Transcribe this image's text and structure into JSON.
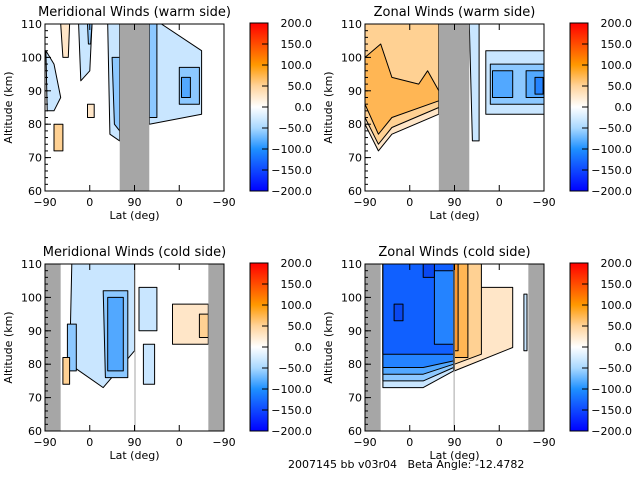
{
  "footer": {
    "date_code": "2007145 bb v03r04",
    "beta_label": "Beta Angle:",
    "beta_value": "-12.4782"
  },
  "colorbar": {
    "ticks": [
      "200.0",
      "150.0",
      "100.0",
      "50.0",
      "0.0",
      "-50.0",
      "-100.0",
      "-150.0",
      "-200.0"
    ],
    "range": [
      -200,
      200
    ],
    "stops": [
      {
        "v": 200,
        "c": "#ff0000"
      },
      {
        "v": 100,
        "c": "#ff9900"
      },
      {
        "v": 50,
        "c": "#ffd39a"
      },
      {
        "v": 0,
        "c": "#ffffff"
      },
      {
        "v": -50,
        "c": "#a8d8ff"
      },
      {
        "v": -100,
        "c": "#1e90ff"
      },
      {
        "v": -200,
        "c": "#0000ff"
      }
    ]
  },
  "colors": {
    "gap": "#a6a6a6",
    "pos1": "#ffe6c8",
    "pos2": "#ffd193",
    "pos3": "#ffb654",
    "pos4": "#ff9a2e",
    "neg1": "#c9e6ff",
    "neg2": "#8cc8ff",
    "neg3": "#52a8ff",
    "neg4": "#2483ff",
    "neg5": "#1060ff",
    "neg6": "#0a48f0"
  },
  "chart_data": [
    {
      "type": "heatmap",
      "title": "Meridional Winds (warm side)",
      "xlabel": "Lat (deg)",
      "ylabel": "Altitude (km)",
      "xticks": [
        "-90",
        "0",
        "90",
        "0",
        "-90"
      ],
      "yticks": [
        "60",
        "70",
        "80",
        "90",
        "100",
        "110"
      ],
      "ylim": [
        60,
        110
      ],
      "x_range": [
        0,
        4
      ],
      "gaps": [
        [
          1.67,
          2.33
        ]
      ],
      "contour_interval": 25,
      "regions": [
        {
          "level": "pos1",
          "value": 20,
          "x": [
            0.35,
            0.55,
            0.52,
            0.4
          ],
          "alt": [
            110,
            110,
            100,
            100
          ]
        },
        {
          "level": "neg1",
          "value": -20,
          "x": [
            0.75,
            1.05,
            1.0,
            0.8
          ],
          "alt": [
            110,
            110,
            96,
            93
          ]
        },
        {
          "level": "neg2",
          "value": -45,
          "x": [
            0.95,
            1.05,
            1.02,
            0.97
          ],
          "alt": [
            110,
            110,
            104,
            104
          ]
        },
        {
          "level": "neg1",
          "value": -20,
          "x": [
            0.02,
            0.2,
            0.35,
            0.2,
            0.05
          ],
          "alt": [
            102,
            98,
            88,
            84,
            84
          ]
        },
        {
          "level": "pos1",
          "value": 20,
          "x": [
            0.95,
            1.1,
            1.1,
            0.95
          ],
          "alt": [
            86,
            86,
            82,
            82
          ]
        },
        {
          "level": "pos2",
          "value": 35,
          "x": [
            0.2,
            0.4,
            0.4,
            0.2
          ],
          "alt": [
            80,
            80,
            72,
            72
          ]
        },
        {
          "level": "neg1",
          "value": -25,
          "x": [
            1.4,
            1.67,
            1.67,
            1.45
          ],
          "alt": [
            110,
            110,
            75,
            77
          ]
        },
        {
          "level": "neg2",
          "value": -50,
          "x": [
            1.5,
            1.67,
            1.67,
            1.55
          ],
          "alt": [
            100,
            100,
            78,
            80
          ]
        },
        {
          "level": "neg1",
          "value": -25,
          "x": [
            2.33,
            2.6,
            3.5,
            3.5,
            2.33
          ],
          "alt": [
            110,
            110,
            102,
            83,
            80
          ]
        },
        {
          "level": "neg2",
          "value": -55,
          "x": [
            2.33,
            2.5,
            2.5,
            2.33
          ],
          "alt": [
            110,
            110,
            82,
            82
          ]
        },
        {
          "level": "neg2",
          "value": -50,
          "x": [
            3.0,
            3.45,
            3.45,
            3.0
          ],
          "alt": [
            97,
            97,
            86,
            86
          ]
        },
        {
          "level": "neg3",
          "value": -75,
          "x": [
            3.05,
            3.25,
            3.25,
            3.05
          ],
          "alt": [
            94,
            94,
            88,
            88
          ]
        }
      ]
    },
    {
      "type": "heatmap",
      "title": "Zonal Winds (warm side)",
      "xlabel": "Lat (deg)",
      "ylabel": "Altitude (km)",
      "xticks": [
        "-90",
        "0",
        "90",
        "0",
        "-90"
      ],
      "yticks": [
        "60",
        "70",
        "80",
        "90",
        "100",
        "110"
      ],
      "ylim": [
        60,
        110
      ],
      "x_range": [
        0,
        4
      ],
      "gaps": [
        [
          1.65,
          2.33
        ]
      ],
      "contour_interval": 25,
      "regions": [
        {
          "level": "pos1",
          "value": 20,
          "x": [
            0.0,
            1.65,
            1.65,
            0.6,
            0.3,
            0.0
          ],
          "alt": [
            110,
            110,
            83,
            77,
            72,
            80
          ]
        },
        {
          "level": "pos2",
          "value": 45,
          "x": [
            0.0,
            1.65,
            1.65,
            0.6,
            0.3,
            0.0
          ],
          "alt": [
            110,
            110,
            85,
            79,
            74,
            82
          ]
        },
        {
          "level": "pos3",
          "value": 70,
          "x": [
            0.0,
            0.35,
            0.6,
            1.2,
            1.4,
            1.65,
            1.65,
            0.6,
            0.3,
            0.0
          ],
          "alt": [
            100,
            104,
            94,
            92,
            96,
            90,
            87,
            82,
            77,
            86
          ]
        },
        {
          "level": "neg1",
          "value": -25,
          "x": [
            2.33,
            2.55,
            2.55,
            2.4
          ],
          "alt": [
            110,
            110,
            75,
            75
          ]
        },
        {
          "level": "neg1",
          "value": -25,
          "x": [
            2.7,
            4.0,
            4.0,
            2.7
          ],
          "alt": [
            102,
            102,
            83,
            83
          ]
        },
        {
          "level": "neg2",
          "value": -50,
          "x": [
            2.8,
            4.0,
            4.0,
            2.8
          ],
          "alt": [
            98,
            98,
            86,
            86
          ]
        },
        {
          "level": "neg3",
          "value": -75,
          "x": [
            2.85,
            3.3,
            3.3,
            2.85
          ],
          "alt": [
            96,
            96,
            88,
            88
          ]
        },
        {
          "level": "neg3",
          "value": -75,
          "x": [
            3.6,
            4.0,
            4.0,
            3.6
          ],
          "alt": [
            96,
            96,
            88,
            88
          ]
        },
        {
          "level": "neg4",
          "value": -100,
          "x": [
            3.8,
            3.98,
            3.98,
            3.8
          ],
          "alt": [
            94,
            94,
            89,
            89
          ]
        }
      ]
    },
    {
      "type": "heatmap",
      "title": "Meridional Winds (cold side)",
      "xlabel": "Lat (deg)",
      "ylabel": "Altitude (km)",
      "xticks": [
        "-90",
        "0",
        "90",
        "0",
        "-90"
      ],
      "yticks": [
        "60",
        "70",
        "80",
        "90",
        "100",
        "110"
      ],
      "ylim": [
        60,
        110
      ],
      "x_range": [
        0,
        4
      ],
      "gaps": [
        [
          0.0,
          0.35
        ],
        [
          2.0,
          2.02
        ],
        [
          3.65,
          4.0
        ]
      ],
      "contour_interval": 25,
      "regions": [
        {
          "level": "neg1",
          "value": -25,
          "x": [
            0.6,
            2.0,
            2.0,
            1.3,
            0.55
          ],
          "alt": [
            110,
            110,
            84,
            73,
            80
          ]
        },
        {
          "level": "neg2",
          "value": -50,
          "x": [
            1.3,
            1.85,
            1.85,
            1.35
          ],
          "alt": [
            102,
            102,
            76,
            76
          ]
        },
        {
          "level": "neg3",
          "value": -75,
          "x": [
            1.4,
            1.75,
            1.75,
            1.4
          ],
          "alt": [
            100,
            100,
            78,
            78
          ]
        },
        {
          "level": "neg2",
          "value": -45,
          "x": [
            0.5,
            0.7,
            0.7,
            0.5
          ],
          "alt": [
            92,
            92,
            78,
            78
          ]
        },
        {
          "level": "pos2",
          "value": 40,
          "x": [
            0.4,
            0.55,
            0.55,
            0.4
          ],
          "alt": [
            82,
            82,
            74,
            74
          ]
        },
        {
          "level": "neg1",
          "value": -25,
          "x": [
            2.1,
            2.5,
            2.5,
            2.1
          ],
          "alt": [
            103,
            103,
            90,
            90
          ]
        },
        {
          "level": "neg1",
          "value": -25,
          "x": [
            2.2,
            2.45,
            2.45,
            2.2
          ],
          "alt": [
            86,
            86,
            74,
            74
          ]
        },
        {
          "level": "pos1",
          "value": 20,
          "x": [
            2.85,
            3.65,
            3.65,
            2.85
          ],
          "alt": [
            98,
            98,
            86,
            86
          ]
        },
        {
          "level": "pos2",
          "value": 45,
          "x": [
            3.45,
            3.65,
            3.65,
            3.45
          ],
          "alt": [
            95,
            95,
            88,
            88
          ]
        }
      ]
    },
    {
      "type": "heatmap",
      "title": "Zonal Winds (cold side)",
      "xlabel": "Lat (deg)",
      "ylabel": "Altitude (km)",
      "xticks": [
        "-90",
        "0",
        "90",
        "0",
        "-90"
      ],
      "yticks": [
        "60",
        "70",
        "80",
        "90",
        "100",
        "110"
      ],
      "ylim": [
        60,
        110
      ],
      "x_range": [
        0,
        4
      ],
      "gaps": [
        [
          0.0,
          0.35
        ],
        [
          1.98,
          2.0
        ],
        [
          3.65,
          4.0
        ]
      ],
      "contour_interval": 25,
      "regions": [
        {
          "level": "neg1",
          "value": -25,
          "x": [
            0.4,
            1.98,
            1.98,
            1.3,
            0.4
          ],
          "alt": [
            110,
            110,
            78,
            73,
            73
          ]
        },
        {
          "level": "neg2",
          "value": -50,
          "x": [
            0.4,
            1.98,
            1.98,
            1.3,
            0.4
          ],
          "alt": [
            110,
            110,
            79,
            75,
            75
          ]
        },
        {
          "level": "neg3",
          "value": -75,
          "x": [
            0.4,
            1.98,
            1.98,
            1.3,
            0.4
          ],
          "alt": [
            110,
            110,
            80,
            77,
            77
          ]
        },
        {
          "level": "neg4",
          "value": -100,
          "x": [
            0.4,
            1.98,
            1.98,
            1.3,
            0.4
          ],
          "alt": [
            110,
            110,
            81,
            79,
            79
          ]
        },
        {
          "level": "neg5",
          "value": -130,
          "x": [
            0.4,
            1.98,
            1.98,
            0.4
          ],
          "alt": [
            110,
            110,
            83,
            83
          ]
        },
        {
          "level": "neg4",
          "value": -110,
          "x": [
            1.55,
            1.98,
            1.98,
            1.55
          ],
          "alt": [
            108,
            108,
            86,
            86
          ]
        },
        {
          "level": "neg6",
          "value": -160,
          "x": [
            0.65,
            0.85,
            0.85,
            0.65
          ],
          "alt": [
            98,
            98,
            93,
            93
          ]
        },
        {
          "level": "neg6",
          "value": -160,
          "x": [
            1.3,
            1.55,
            1.55,
            1.3
          ],
          "alt": [
            110,
            110,
            106,
            106
          ]
        },
        {
          "level": "pos1",
          "value": 20,
          "x": [
            2.0,
            3.3,
            3.3,
            2.0
          ],
          "alt": [
            103,
            103,
            85,
            78
          ]
        },
        {
          "level": "pos2",
          "value": 45,
          "x": [
            2.0,
            2.6,
            2.6,
            2.0
          ],
          "alt": [
            110,
            110,
            83,
            80
          ]
        },
        {
          "level": "pos3",
          "value": 70,
          "x": [
            2.0,
            2.3,
            2.3,
            2.0
          ],
          "alt": [
            110,
            110,
            82,
            82
          ]
        },
        {
          "level": "pos4",
          "value": 100,
          "x": [
            2.0,
            2.08,
            2.08,
            2.0
          ],
          "alt": [
            110,
            110,
            84,
            84
          ]
        },
        {
          "level": "neg1",
          "value": -20,
          "x": [
            3.55,
            3.62,
            3.62,
            3.55
          ],
          "alt": [
            101,
            101,
            84,
            84
          ]
        }
      ]
    }
  ]
}
